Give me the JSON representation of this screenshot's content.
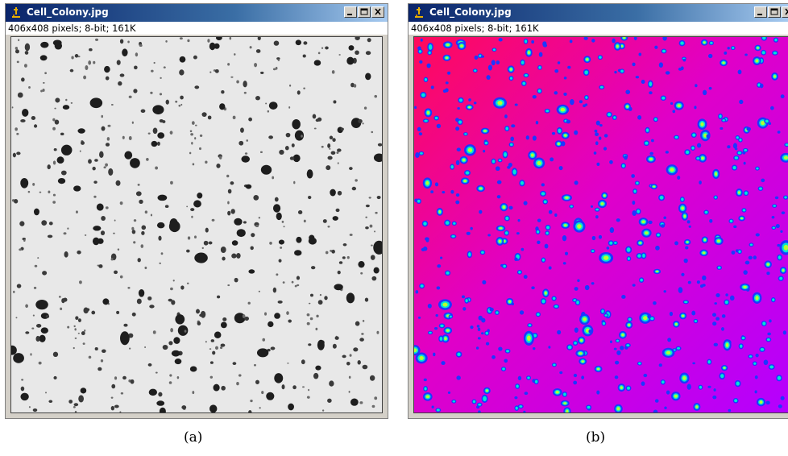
{
  "windows": [
    {
      "title": "Cell_Colony.jpg",
      "info": "406x408 pixels; 8-bit; 161K",
      "caption": "(a)",
      "view": "grayscale"
    },
    {
      "title": "Cell_Colony.jpg",
      "info": "406x408 pixels; 8-bit; 161K",
      "caption": "(b)",
      "view": "color lookup table"
    }
  ],
  "icons": [
    "imagej-microscope-icon",
    "minimize-icon",
    "maximize-icon",
    "close-icon"
  ],
  "colors": {
    "titlebar_start": "#0a246a",
    "titlebar_end": "#a6caf0",
    "window_frame": "#d4d0c8",
    "gray_background": "#e8e8e8",
    "gray_colony": "#1e1e1e",
    "lut_background_left": "#ff0a5a",
    "lut_background_right": "#b400ff",
    "lut_colony_outer": "#1d37ff",
    "lut_colony_mid": "#00e6d2",
    "lut_colony_core": "#b4ff32"
  }
}
